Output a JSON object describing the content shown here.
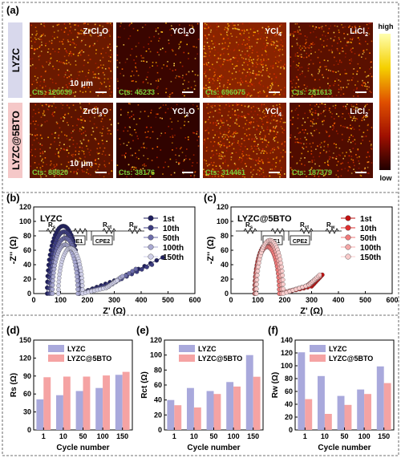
{
  "panel_a": {
    "label": "(a)",
    "row_labels": [
      "LYZC",
      "LYZC@5BTO"
    ],
    "columns": [
      {
        "name": "ZrCl",
        "sub1": "3",
        "tail": "O"
      },
      {
        "name": "YCl",
        "sub1": "2",
        "tail": "O"
      },
      {
        "name": "YCl",
        "sub1": "4",
        "tail": ""
      },
      {
        "name": "LiCl",
        "sub1": "2",
        "tail": ""
      }
    ],
    "counts": [
      [
        "Cts: 120039",
        "Cts: 45233",
        "Cts: 696075",
        "Cts: 281613"
      ],
      [
        "Cts: 88820",
        "Cts: 38176",
        "Cts: 314461",
        "Cts: 187379"
      ]
    ],
    "scale_bar": "10 μm",
    "colorbar": {
      "high": "high",
      "low": "low"
    }
  },
  "panel_b": {
    "label": "(b)",
    "inset": "LYZC",
    "circuit": [
      "R",
      "R",
      "R",
      "R",
      "CPE1",
      "CPE2"
    ],
    "circuit_subs": [
      "s",
      "ct",
      "w"
    ],
    "xlabel": "Z' (Ω)",
    "ylabel": "-Z'' (Ω)",
    "legend": [
      "1st",
      "10th",
      "50th",
      "100th",
      "150th"
    ]
  },
  "panel_c": {
    "label": "(c)",
    "inset": "LYZC@5BTO",
    "xlabel": "Z' (Ω)",
    "ylabel": "-Z'' (Ω)",
    "legend": [
      "1st",
      "10th",
      "50th",
      "100th",
      "150th"
    ]
  },
  "chart_data": [
    {
      "type": "scatter",
      "panel": "b",
      "xlim": [
        0,
        600
      ],
      "ylim": [
        0,
        120
      ],
      "xticks": [
        0,
        100,
        200,
        300,
        400,
        500,
        600
      ],
      "yticks": [
        0,
        20,
        40,
        60,
        80,
        100,
        120
      ],
      "series": [
        {
          "name": "1st",
          "color": "#1f1f5f",
          "arc": {
            "r_s": 50,
            "r_ct": 120,
            "depth": 0.78
          },
          "tail": [
            [
              300,
              18
            ],
            [
              480,
              50
            ]
          ]
        },
        {
          "name": "10th",
          "color": "#3c3c80",
          "arc": {
            "r_s": 58,
            "r_ct": 110,
            "depth": 0.78
          },
          "tail": [
            [
              290,
              14
            ],
            [
              440,
              40
            ]
          ]
        },
        {
          "name": "50th",
          "color": "#6b6ba8",
          "arc": {
            "r_s": 65,
            "r_ct": 104,
            "depth": 0.74
          },
          "tail": [
            [
              280,
              10
            ],
            [
              380,
              34
            ]
          ]
        },
        {
          "name": "100th",
          "color": "#a8a8d0",
          "arc": {
            "r_s": 70,
            "r_ct": 94,
            "depth": 0.72
          },
          "tail": [
            [
              270,
              8
            ],
            [
              330,
              24
            ]
          ]
        },
        {
          "name": "150th",
          "color": "#cfcfe8",
          "arc": {
            "r_s": 92,
            "r_ct": 90,
            "depth": 0.7
          },
          "tail": [
            [
              270,
              8
            ],
            [
              310,
              18
            ]
          ]
        }
      ]
    },
    {
      "type": "scatter",
      "panel": "c",
      "xlim": [
        0,
        600
      ],
      "ylim": [
        0,
        120
      ],
      "xticks": [
        0,
        100,
        200,
        300,
        400,
        500,
        600
      ],
      "yticks": [
        0,
        20,
        40,
        60,
        80,
        100,
        120
      ],
      "series": [
        {
          "name": "1st",
          "color": "#c21010",
          "arc": {
            "r_s": 88,
            "r_ct": 96,
            "depth": 0.72
          },
          "tail": [
            [
              300,
              10
            ],
            [
              340,
              26
            ]
          ]
        },
        {
          "name": "10th",
          "color": "#e03030",
          "arc": {
            "r_s": 88,
            "r_ct": 92,
            "depth": 0.72
          },
          "tail": [
            [
              290,
              10
            ],
            [
              330,
              24
            ]
          ]
        },
        {
          "name": "50th",
          "color": "#f07a7a",
          "arc": {
            "r_s": 90,
            "r_ct": 90,
            "depth": 0.72
          },
          "tail": [
            [
              280,
              10
            ],
            [
              320,
              22
            ]
          ]
        },
        {
          "name": "100th",
          "color": "#f4a8a8",
          "arc": {
            "r_s": 92,
            "r_ct": 96,
            "depth": 0.74
          },
          "tail": [
            [
              290,
              12
            ],
            [
              330,
              24
            ]
          ]
        },
        {
          "name": "150th",
          "color": "#f8cccc",
          "arc": {
            "r_s": 95,
            "r_ct": 100,
            "depth": 0.74
          },
          "tail": [
            [
              290,
              12
            ],
            [
              330,
              26
            ]
          ]
        }
      ]
    },
    {
      "type": "bar",
      "panel": "d",
      "ylabel": "Rs (Ω)",
      "xlabel": "Cycle number",
      "categories": [
        "1",
        "10",
        "50",
        "100",
        "150"
      ],
      "ylim": [
        0,
        150
      ],
      "yticks": [
        0,
        30,
        60,
        90,
        120,
        150
      ],
      "series": [
        {
          "name": "LYZC",
          "color": "#a9a9dc",
          "values": [
            51,
            58,
            65,
            70,
            92
          ]
        },
        {
          "name": "LYZC@5BTO",
          "color": "#f5a3a3",
          "values": [
            88,
            89,
            89,
            91,
            97
          ]
        }
      ]
    },
    {
      "type": "bar",
      "panel": "e",
      "ylabel": "Rct (Ω)",
      "xlabel": "Cycle number",
      "categories": [
        "1",
        "10",
        "50",
        "100",
        "150"
      ],
      "ylim": [
        0,
        120
      ],
      "yticks": [
        0,
        20,
        40,
        60,
        80,
        100,
        120
      ],
      "series": [
        {
          "name": "LYZC",
          "color": "#a9a9dc",
          "values": [
            40,
            56,
            52,
            64,
            100
          ]
        },
        {
          "name": "LYZC@5BTO",
          "color": "#f5a3a3",
          "values": [
            33,
            30,
            48,
            58,
            71
          ]
        }
      ]
    },
    {
      "type": "bar",
      "panel": "f",
      "ylabel": "Rw (Ω)",
      "xlabel": "Cycle number",
      "categories": [
        "1",
        "10",
        "50",
        "100",
        "150"
      ],
      "ylim": [
        0,
        140
      ],
      "yticks": [
        0,
        20,
        40,
        60,
        80,
        100,
        120,
        140
      ],
      "series": [
        {
          "name": "LYZC",
          "color": "#a9a9dc",
          "values": [
            121,
            84,
            53,
            63,
            99
          ]
        },
        {
          "name": "LYZC@5BTO",
          "color": "#f5a3a3",
          "values": [
            48,
            25,
            39,
            56,
            73
          ]
        }
      ]
    }
  ],
  "panel_labels": {
    "d": "(d)",
    "e": "(e)",
    "f": "(f)"
  }
}
